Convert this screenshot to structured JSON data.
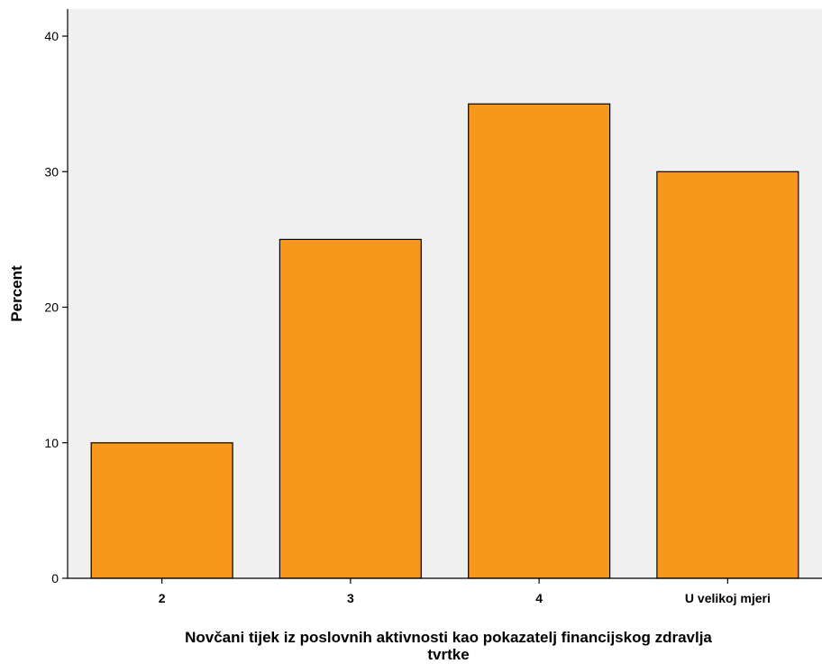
{
  "chart_data": {
    "type": "bar",
    "categories": [
      "2",
      "3",
      "4",
      "U velikoj mjeri"
    ],
    "values": [
      10,
      25,
      35,
      30
    ],
    "title": "",
    "xlabel_lines": [
      "Novčani tijek iz poslovnih aktivnosti kao pokazatelj financijskog zdravlja",
      "tvrtke"
    ],
    "ylabel": "Percent",
    "ylim": [
      0,
      42
    ],
    "yticks": [
      0,
      10,
      20,
      30,
      40
    ],
    "grid": false,
    "colors": {
      "bar_fill": "#f7981d",
      "bar_stroke": "#000000",
      "plot_background": "#f0f0f0"
    }
  }
}
